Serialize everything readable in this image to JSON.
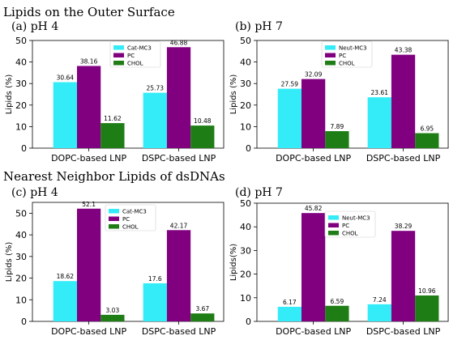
{
  "sections": {
    "top_title": "Lipids on the Outer Surface",
    "bottom_title": "Nearest Neighbor Lipids of dsDNAs"
  },
  "colors": {
    "series_a": "#33ecf7",
    "series_b": "#800080",
    "series_c": "#1e7d14"
  },
  "chart_data": [
    {
      "type": "bar",
      "panel_label": "(a)  pH 4",
      "categories": [
        "DOPC-based LNP",
        "DSPC-based LNP"
      ],
      "series": [
        {
          "name": "Cat-MC3",
          "values": [
            30.64,
            25.73
          ],
          "labels": [
            "30.64",
            "25.73"
          ]
        },
        {
          "name": "PC",
          "values": [
            38.16,
            46.88
          ],
          "labels": [
            "38.16",
            "46.88"
          ]
        },
        {
          "name": "CHOL",
          "values": [
            11.62,
            10.48
          ],
          "labels": [
            "11.62",
            "10.48"
          ]
        }
      ],
      "ylabel": "Lipids (%)",
      "ylim": [
        0,
        50
      ],
      "yticks": [
        "0",
        "10",
        "20",
        "30",
        "40",
        "50"
      ],
      "legend_position": "top-right",
      "grid": false
    },
    {
      "type": "bar",
      "panel_label": "(b)  pH 7",
      "categories": [
        "DOPC-based LNP",
        "DSPC-based LNP"
      ],
      "series": [
        {
          "name": "Neut-MC3",
          "values": [
            27.59,
            23.61
          ],
          "labels": [
            "27.59",
            "23.61"
          ]
        },
        {
          "name": "PC",
          "values": [
            32.09,
            43.38
          ],
          "labels": [
            "32.09",
            "43.38"
          ]
        },
        {
          "name": "CHOL",
          "values": [
            7.89,
            6.95
          ],
          "labels": [
            "7.89",
            "6.95"
          ]
        }
      ],
      "ylabel": "Lipids (%)",
      "ylim": [
        0,
        50
      ],
      "yticks": [
        "0",
        "10",
        "20",
        "30",
        "40",
        "50"
      ],
      "legend_position": "top-left",
      "grid": false
    },
    {
      "type": "bar",
      "panel_label": "(c)  pH 4",
      "categories": [
        "DOPC-based LNP",
        "DSPC-based LNP"
      ],
      "series": [
        {
          "name": "Cat-MC3",
          "values": [
            18.62,
            17.6
          ],
          "labels": [
            "18.62",
            "17.6"
          ]
        },
        {
          "name": "PC",
          "values": [
            52.1,
            42.17
          ],
          "labels": [
            "52.1",
            "42.17"
          ]
        },
        {
          "name": "CHOL",
          "values": [
            3.03,
            3.67
          ],
          "labels": [
            "3.03",
            "3.67"
          ]
        }
      ],
      "ylabel": "Lipids (%)",
      "ylim": [
        0,
        55
      ],
      "yticks": [
        "0",
        "10",
        "20",
        "30",
        "40",
        "50"
      ],
      "legend_position": "top-center",
      "grid": false
    },
    {
      "type": "bar",
      "panel_label": "(d) pH 7",
      "categories": [
        "DOPC-based LNP",
        "DSPC-based LNP"
      ],
      "series": [
        {
          "name": "Neut-MC3",
          "values": [
            6.17,
            7.24
          ],
          "labels": [
            "6.17",
            "7.24"
          ]
        },
        {
          "name": "PC",
          "values": [
            45.82,
            38.29
          ],
          "labels": [
            "45.82",
            "38.29"
          ]
        },
        {
          "name": "CHOL",
          "values": [
            6.59,
            10.96
          ],
          "labels": [
            "6.59",
            "10.96"
          ]
        }
      ],
      "ylabel": "Lipids(%)",
      "ylim": [
        0,
        50
      ],
      "yticks": [
        "0",
        "10",
        "20",
        "30",
        "40",
        "50"
      ],
      "legend_position": "top-right",
      "grid": false
    }
  ]
}
